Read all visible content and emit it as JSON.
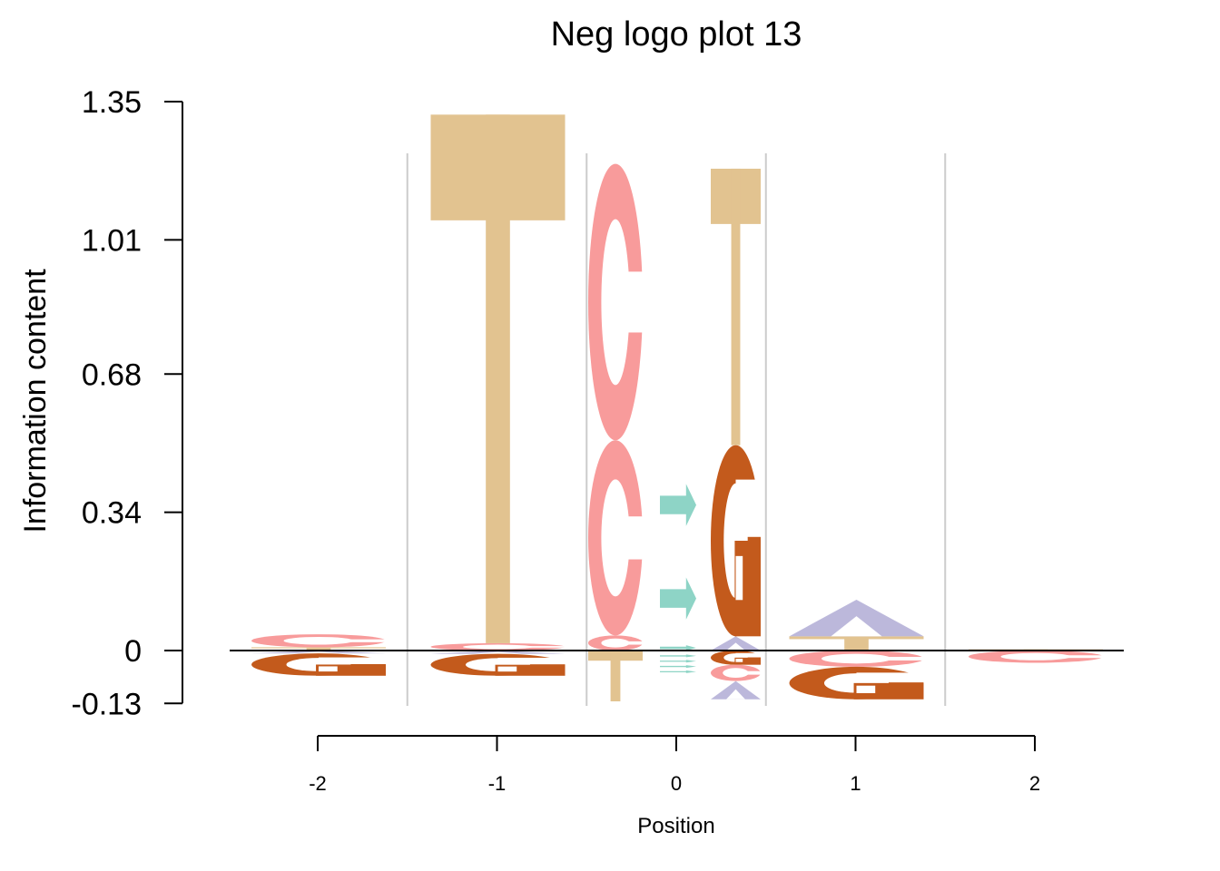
{
  "chart_data": {
    "type": "sequence-logo",
    "title": "Neg logo plot 13",
    "xlabel": "Position",
    "ylabel": "Information content",
    "positions": [
      -2,
      -1,
      0,
      1,
      2
    ],
    "x_tick_labels": [
      "-2",
      "-1",
      "0",
      "1",
      "2"
    ],
    "y_ticks": [
      -0.13,
      0,
      0.34,
      0.68,
      1.01,
      1.35
    ],
    "y_tick_labels": [
      "-0.13",
      "0",
      "0.34",
      "0.68",
      "1.01",
      "1.35"
    ],
    "ylim": [
      -0.13,
      1.35
    ],
    "colors": {
      "A": "#bcb8db",
      "C": "#f89b9b",
      "G": "#c35a1c",
      "T": "#e2c390",
      "arrow": "#8ed4c6"
    },
    "columns": [
      {
        "position": -2,
        "slot": 0,
        "positive": [
          {
            "symbol": "T",
            "height": 0.008
          },
          {
            "symbol": "C",
            "height": 0.032
          }
        ],
        "negative": [
          {
            "symbol": "A",
            "height": 0.007
          },
          {
            "symbol": "G",
            "height": 0.055
          }
        ]
      },
      {
        "position": -1,
        "slot": 0,
        "positive": [
          {
            "symbol": "C",
            "height": 0.018
          },
          {
            "symbol": "T",
            "height": 1.3
          }
        ],
        "negative": [
          {
            "symbol": "A",
            "height": 0.008
          },
          {
            "symbol": "G",
            "height": 0.054
          }
        ]
      },
      {
        "position": 0,
        "slot": -1,
        "positive": [
          {
            "symbol": "C",
            "height": 0.037
          },
          {
            "symbol": "C",
            "height": 0.48
          },
          {
            "symbol": "C",
            "height": 0.68
          }
        ],
        "negative": [
          {
            "symbol": "T",
            "height": 0.125
          }
        ]
      },
      {
        "position": 0,
        "slot": 0,
        "positive": [
          {
            "symbol": "arrow",
            "height": 0.013
          },
          {
            "symbol": "arrow",
            "height": 0.23
          },
          {
            "symbol": "arrow",
            "height": 0.23
          }
        ],
        "negative": [
          {
            "symbol": "arrow",
            "height": 0.013
          },
          {
            "symbol": "arrow",
            "height": 0.013
          },
          {
            "symbol": "arrow",
            "height": 0.013
          },
          {
            "symbol": "arrow",
            "height": 0.013
          }
        ]
      },
      {
        "position": 0,
        "slot": 1,
        "positive": [
          {
            "symbol": "A",
            "height": 0.035
          },
          {
            "symbol": "G",
            "height": 0.47
          },
          {
            "symbol": "T",
            "height": 0.68
          }
        ],
        "negative": [
          {
            "symbol": "G",
            "height": 0.035
          },
          {
            "symbol": "C",
            "height": 0.04
          },
          {
            "symbol": "A",
            "height": 0.045
          }
        ]
      },
      {
        "position": 1,
        "slot": 0,
        "positive": [
          {
            "symbol": "T",
            "height": 0.035
          },
          {
            "symbol": "A",
            "height": 0.09
          }
        ],
        "negative": [
          {
            "symbol": "C",
            "height": 0.04
          },
          {
            "symbol": "G",
            "height": 0.08
          }
        ]
      },
      {
        "position": 2,
        "slot": 0,
        "positive": [
          {
            "symbol": "T",
            "height": 0.003
          }
        ],
        "negative": [
          {
            "symbol": "C",
            "height": 0.03
          }
        ]
      }
    ]
  }
}
